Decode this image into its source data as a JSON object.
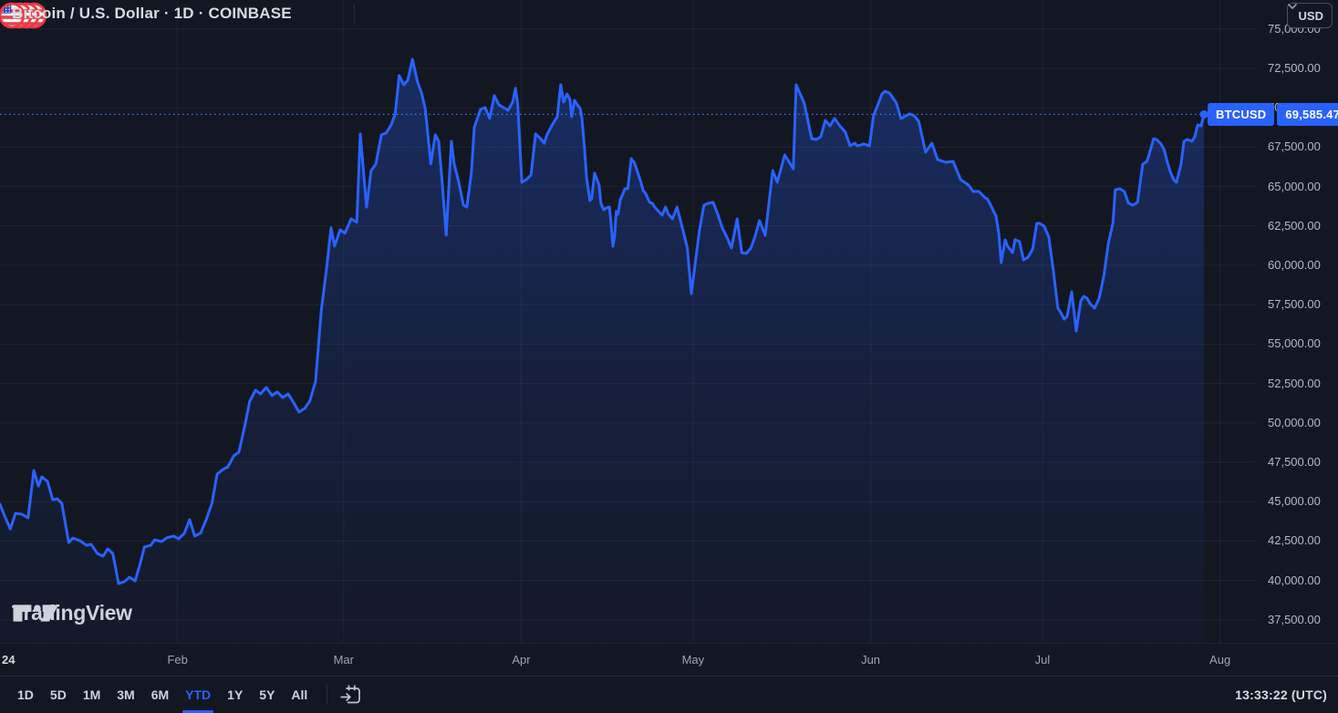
{
  "header": {
    "title": "Bitcoin / U.S. Dollar · 1D · COINBASE",
    "currency": {
      "value": "USD"
    }
  },
  "price_label": {
    "symbol": "BTCUSD",
    "value": "69,585.47"
  },
  "logo": {
    "text": "TradingView"
  },
  "toolbar": {
    "ranges": [
      "1D",
      "5D",
      "1M",
      "3M",
      "6M",
      "YTD",
      "1Y",
      "5Y",
      "All"
    ],
    "active_range": "YTD",
    "clock": "13:33:22 (UTC)"
  },
  "colors": {
    "background": "#131722",
    "accent": "#2962ff",
    "flag_red": "#f23645",
    "grid": "rgba(255,255,255,0.055)"
  },
  "chart_data": {
    "type": "area",
    "title": "Bitcoin / U.S. Dollar",
    "symbol": "BTCUSD",
    "exchange": "COINBASE",
    "interval": "1D",
    "active_range": "YTD",
    "current_price": 69585.47,
    "legend_position": "none",
    "grid": true,
    "y_axis": {
      "side": "right",
      "min": 36000,
      "max": 75800
    },
    "y_ticks": [
      {
        "value": 75000,
        "label": "75,000.00"
      },
      {
        "value": 72500,
        "label": "72,500.00"
      },
      {
        "value": 70000,
        "label": "70,000.00"
      },
      {
        "value": 67500,
        "label": "67,500.00"
      },
      {
        "value": 65000,
        "label": "65,000.00"
      },
      {
        "value": 62500,
        "label": "62,500.00"
      },
      {
        "value": 60000,
        "label": "60,000.00"
      },
      {
        "value": 57500,
        "label": "57,500.00"
      },
      {
        "value": 55000,
        "label": "55,000.00"
      },
      {
        "value": 52500,
        "label": "52,500.00"
      },
      {
        "value": 50000,
        "label": "50,000.00"
      },
      {
        "value": 47500,
        "label": "47,500.00"
      },
      {
        "value": 45000,
        "label": "45,000.00"
      },
      {
        "value": 42500,
        "label": "42,500.00"
      },
      {
        "value": 40000,
        "label": "40,000.00"
      },
      {
        "value": 37500,
        "label": "37,500.00"
      }
    ],
    "x_axis_unit": "day of year 2024",
    "months": [
      {
        "label": "24",
        "day": 0,
        "is_year": true
      },
      {
        "label": "Feb",
        "day": 31
      },
      {
        "label": "Mar",
        "day": 60
      },
      {
        "label": "Apr",
        "day": 91
      },
      {
        "label": "May",
        "day": 121
      },
      {
        "label": "Jun",
        "day": 152
      },
      {
        "label": "Jul",
        "day": 182
      },
      {
        "label": "Aug",
        "day": 213
      }
    ],
    "series": [
      {
        "name": "BTCUSD close",
        "points": [
          [
            0,
            44840
          ],
          [
            0.8,
            44100
          ],
          [
            1.8,
            43270
          ],
          [
            2.7,
            44260
          ],
          [
            3.8,
            44200
          ],
          [
            4.9,
            43970
          ],
          [
            5.9,
            46980
          ],
          [
            6.7,
            45990
          ],
          [
            7.3,
            46570
          ],
          [
            8.3,
            46280
          ],
          [
            9.2,
            45130
          ],
          [
            10,
            45180
          ],
          [
            10.8,
            44890
          ],
          [
            12,
            42400
          ],
          [
            12.7,
            42690
          ],
          [
            14,
            42520
          ],
          [
            15.1,
            42230
          ],
          [
            15.9,
            42290
          ],
          [
            17,
            41710
          ],
          [
            18,
            41540
          ],
          [
            18.8,
            42000
          ],
          [
            19.7,
            41710
          ],
          [
            20.7,
            39800
          ],
          [
            21.7,
            39920
          ],
          [
            22.6,
            40200
          ],
          [
            23.6,
            39970
          ],
          [
            24.4,
            40960
          ],
          [
            25.2,
            42120
          ],
          [
            26.3,
            42230
          ],
          [
            27,
            42580
          ],
          [
            28.2,
            42460
          ],
          [
            29.1,
            42700
          ],
          [
            30.3,
            42820
          ],
          [
            31.2,
            42640
          ],
          [
            32.2,
            43000
          ],
          [
            33.1,
            43860
          ],
          [
            34,
            42820
          ],
          [
            35,
            43000
          ],
          [
            36,
            43860
          ],
          [
            37,
            44900
          ],
          [
            37.9,
            46750
          ],
          [
            38.9,
            47040
          ],
          [
            39.8,
            47210
          ],
          [
            40.8,
            47900
          ],
          [
            41.7,
            48140
          ],
          [
            42.7,
            49760
          ],
          [
            43.6,
            51380
          ],
          [
            44.6,
            52070
          ],
          [
            45.5,
            51840
          ],
          [
            46.5,
            52250
          ],
          [
            47.5,
            51730
          ],
          [
            48.4,
            51960
          ],
          [
            49.4,
            51610
          ],
          [
            50.3,
            51840
          ],
          [
            51.3,
            51260
          ],
          [
            52.2,
            50680
          ],
          [
            53.2,
            50920
          ],
          [
            54.1,
            51380
          ],
          [
            55.1,
            52650
          ],
          [
            56.1,
            57170
          ],
          [
            57,
            59770
          ],
          [
            57.8,
            62380
          ],
          [
            58.4,
            61220
          ],
          [
            59.4,
            62260
          ],
          [
            60.2,
            62030
          ],
          [
            61.3,
            62960
          ],
          [
            62.3,
            62730
          ],
          [
            62.9,
            68340
          ],
          [
            64,
            63700
          ],
          [
            64.8,
            66020
          ],
          [
            65.6,
            66420
          ],
          [
            66.6,
            68280
          ],
          [
            67.4,
            68390
          ],
          [
            68.3,
            68910
          ],
          [
            69,
            69610
          ],
          [
            69.7,
            72040
          ],
          [
            70.5,
            71460
          ],
          [
            71.2,
            71750
          ],
          [
            72,
            73080
          ],
          [
            72.9,
            71630
          ],
          [
            73.6,
            70940
          ],
          [
            74.2,
            70010
          ],
          [
            74.5,
            69030
          ],
          [
            75.2,
            66430
          ],
          [
            76,
            68280
          ],
          [
            76.6,
            67870
          ],
          [
            77.2,
            65270
          ],
          [
            77.9,
            61910
          ],
          [
            78.8,
            67870
          ],
          [
            79.3,
            66430
          ],
          [
            80.1,
            65270
          ],
          [
            80.9,
            63820
          ],
          [
            81.5,
            63700
          ],
          [
            82.3,
            65850
          ],
          [
            82.8,
            68750
          ],
          [
            83.9,
            69900
          ],
          [
            84.7,
            70020
          ],
          [
            85.5,
            69320
          ],
          [
            86.3,
            70770
          ],
          [
            87.1,
            70190
          ],
          [
            87.9,
            70020
          ],
          [
            88.7,
            69840
          ],
          [
            89.5,
            70360
          ],
          [
            90,
            71230
          ],
          [
            90.4,
            70190
          ],
          [
            91.1,
            65270
          ],
          [
            91.9,
            65440
          ],
          [
            92.7,
            65730
          ],
          [
            93.5,
            68340
          ],
          [
            94.4,
            68040
          ],
          [
            95,
            67750
          ],
          [
            95.5,
            68270
          ],
          [
            96.3,
            68850
          ],
          [
            96.8,
            69140
          ],
          [
            97.3,
            69430
          ],
          [
            97.9,
            71460
          ],
          [
            98.4,
            70360
          ],
          [
            99,
            70880
          ],
          [
            99.5,
            70530
          ],
          [
            99.8,
            69430
          ],
          [
            100.3,
            70470
          ],
          [
            100.8,
            70190
          ],
          [
            101.3,
            69950
          ],
          [
            101.6,
            69370
          ],
          [
            102.1,
            67180
          ],
          [
            102.4,
            65560
          ],
          [
            103,
            64110
          ],
          [
            103.3,
            64230
          ],
          [
            103.8,
            65850
          ],
          [
            104.1,
            65560
          ],
          [
            104.6,
            65090
          ],
          [
            104.9,
            63940
          ],
          [
            105.4,
            63530
          ],
          [
            105.9,
            63650
          ],
          [
            106.4,
            63700
          ],
          [
            106.7,
            62550
          ],
          [
            107,
            61210
          ],
          [
            107.3,
            61800
          ],
          [
            107.6,
            63420
          ],
          [
            107.9,
            63240
          ],
          [
            108.3,
            64170
          ],
          [
            108.8,
            64570
          ],
          [
            109.1,
            64860
          ],
          [
            109.6,
            64860
          ],
          [
            110.2,
            66770
          ],
          [
            110.7,
            66540
          ],
          [
            111,
            66250
          ],
          [
            111.8,
            65380
          ],
          [
            112.3,
            64740
          ],
          [
            112.7,
            64570
          ],
          [
            113.4,
            64000
          ],
          [
            113.9,
            63940
          ],
          [
            114.3,
            63700
          ],
          [
            115,
            63420
          ],
          [
            115.6,
            63180
          ],
          [
            116.2,
            63700
          ],
          [
            116.7,
            63240
          ],
          [
            117.4,
            62950
          ],
          [
            118.2,
            63700
          ],
          [
            119.4,
            62000
          ],
          [
            120,
            61100
          ],
          [
            120.7,
            58200
          ],
          [
            122.1,
            62200
          ],
          [
            122.9,
            63820
          ],
          [
            123.7,
            63940
          ],
          [
            124.5,
            64000
          ],
          [
            125.3,
            63240
          ],
          [
            126.1,
            62380
          ],
          [
            126.9,
            61800
          ],
          [
            127.7,
            61100
          ],
          [
            128.7,
            62950
          ],
          [
            129.5,
            60810
          ],
          [
            130.3,
            60750
          ],
          [
            131.1,
            61100
          ],
          [
            131.8,
            61800
          ],
          [
            132.6,
            62840
          ],
          [
            133.6,
            61900
          ],
          [
            134.9,
            66020
          ],
          [
            135.7,
            65270
          ],
          [
            137,
            67000
          ],
          [
            138.5,
            66130
          ],
          [
            139,
            71460
          ],
          [
            140.4,
            70300
          ],
          [
            140.9,
            69430
          ],
          [
            141.7,
            68040
          ],
          [
            142.5,
            67990
          ],
          [
            143.3,
            68160
          ],
          [
            144.1,
            69200
          ],
          [
            144.9,
            68850
          ],
          [
            145.7,
            69320
          ],
          [
            146.5,
            68910
          ],
          [
            147.6,
            68450
          ],
          [
            148.4,
            67580
          ],
          [
            149.2,
            67750
          ],
          [
            149.7,
            67580
          ],
          [
            150.8,
            67700
          ],
          [
            151.8,
            67580
          ],
          [
            152.5,
            69490
          ],
          [
            154,
            70880
          ],
          [
            154.5,
            71050
          ],
          [
            155.3,
            70940
          ],
          [
            156.5,
            70300
          ],
          [
            157.3,
            69320
          ],
          [
            158.8,
            69610
          ],
          [
            159.6,
            69490
          ],
          [
            160.4,
            69140
          ],
          [
            161.6,
            67180
          ],
          [
            162.7,
            67750
          ],
          [
            163.7,
            66710
          ],
          [
            165.1,
            66540
          ],
          [
            166.4,
            66600
          ],
          [
            167.7,
            65440
          ],
          [
            169.1,
            65090
          ],
          [
            169.9,
            64690
          ],
          [
            170.9,
            64690
          ],
          [
            172,
            64280
          ],
          [
            172.4,
            64220
          ],
          [
            173.9,
            63120
          ],
          [
            174.4,
            61970
          ],
          [
            174.8,
            60170
          ],
          [
            175.5,
            61620
          ],
          [
            175.9,
            61210
          ],
          [
            176.8,
            60810
          ],
          [
            177.2,
            61620
          ],
          [
            178,
            61510
          ],
          [
            178.7,
            60350
          ],
          [
            179.5,
            60520
          ],
          [
            180.3,
            61040
          ],
          [
            181,
            62660
          ],
          [
            181.5,
            62660
          ],
          [
            182.3,
            62490
          ],
          [
            183.1,
            61800
          ],
          [
            183.9,
            59650
          ],
          [
            184.7,
            57280
          ],
          [
            185.2,
            56990
          ],
          [
            185.8,
            56580
          ],
          [
            186.3,
            56760
          ],
          [
            187.1,
            58320
          ],
          [
            187.9,
            55830
          ],
          [
            188.7,
            57740
          ],
          [
            189.2,
            58030
          ],
          [
            189.8,
            57910
          ],
          [
            190.3,
            57570
          ],
          [
            191.1,
            57280
          ],
          [
            191.9,
            57910
          ],
          [
            192.7,
            59300
          ],
          [
            193.5,
            61390
          ],
          [
            194.3,
            62660
          ],
          [
            194.7,
            64800
          ],
          [
            195.5,
            64860
          ],
          [
            196.3,
            64690
          ],
          [
            197,
            63940
          ],
          [
            197.8,
            63820
          ],
          [
            198.6,
            64000
          ],
          [
            199.5,
            66420
          ],
          [
            200.2,
            66590
          ],
          [
            200.6,
            67000
          ],
          [
            201.4,
            68040
          ],
          [
            201.9,
            67990
          ],
          [
            202.7,
            67700
          ],
          [
            203.3,
            67290
          ],
          [
            203.8,
            66540
          ],
          [
            204.3,
            65960
          ],
          [
            204.9,
            65440
          ],
          [
            205.4,
            65270
          ],
          [
            206.2,
            66420
          ],
          [
            206.7,
            67870
          ],
          [
            207.3,
            67990
          ],
          [
            208.1,
            67870
          ],
          [
            208.6,
            68160
          ],
          [
            209.1,
            68910
          ],
          [
            209.7,
            68850
          ],
          [
            210.2,
            69585.47
          ]
        ]
      }
    ]
  }
}
